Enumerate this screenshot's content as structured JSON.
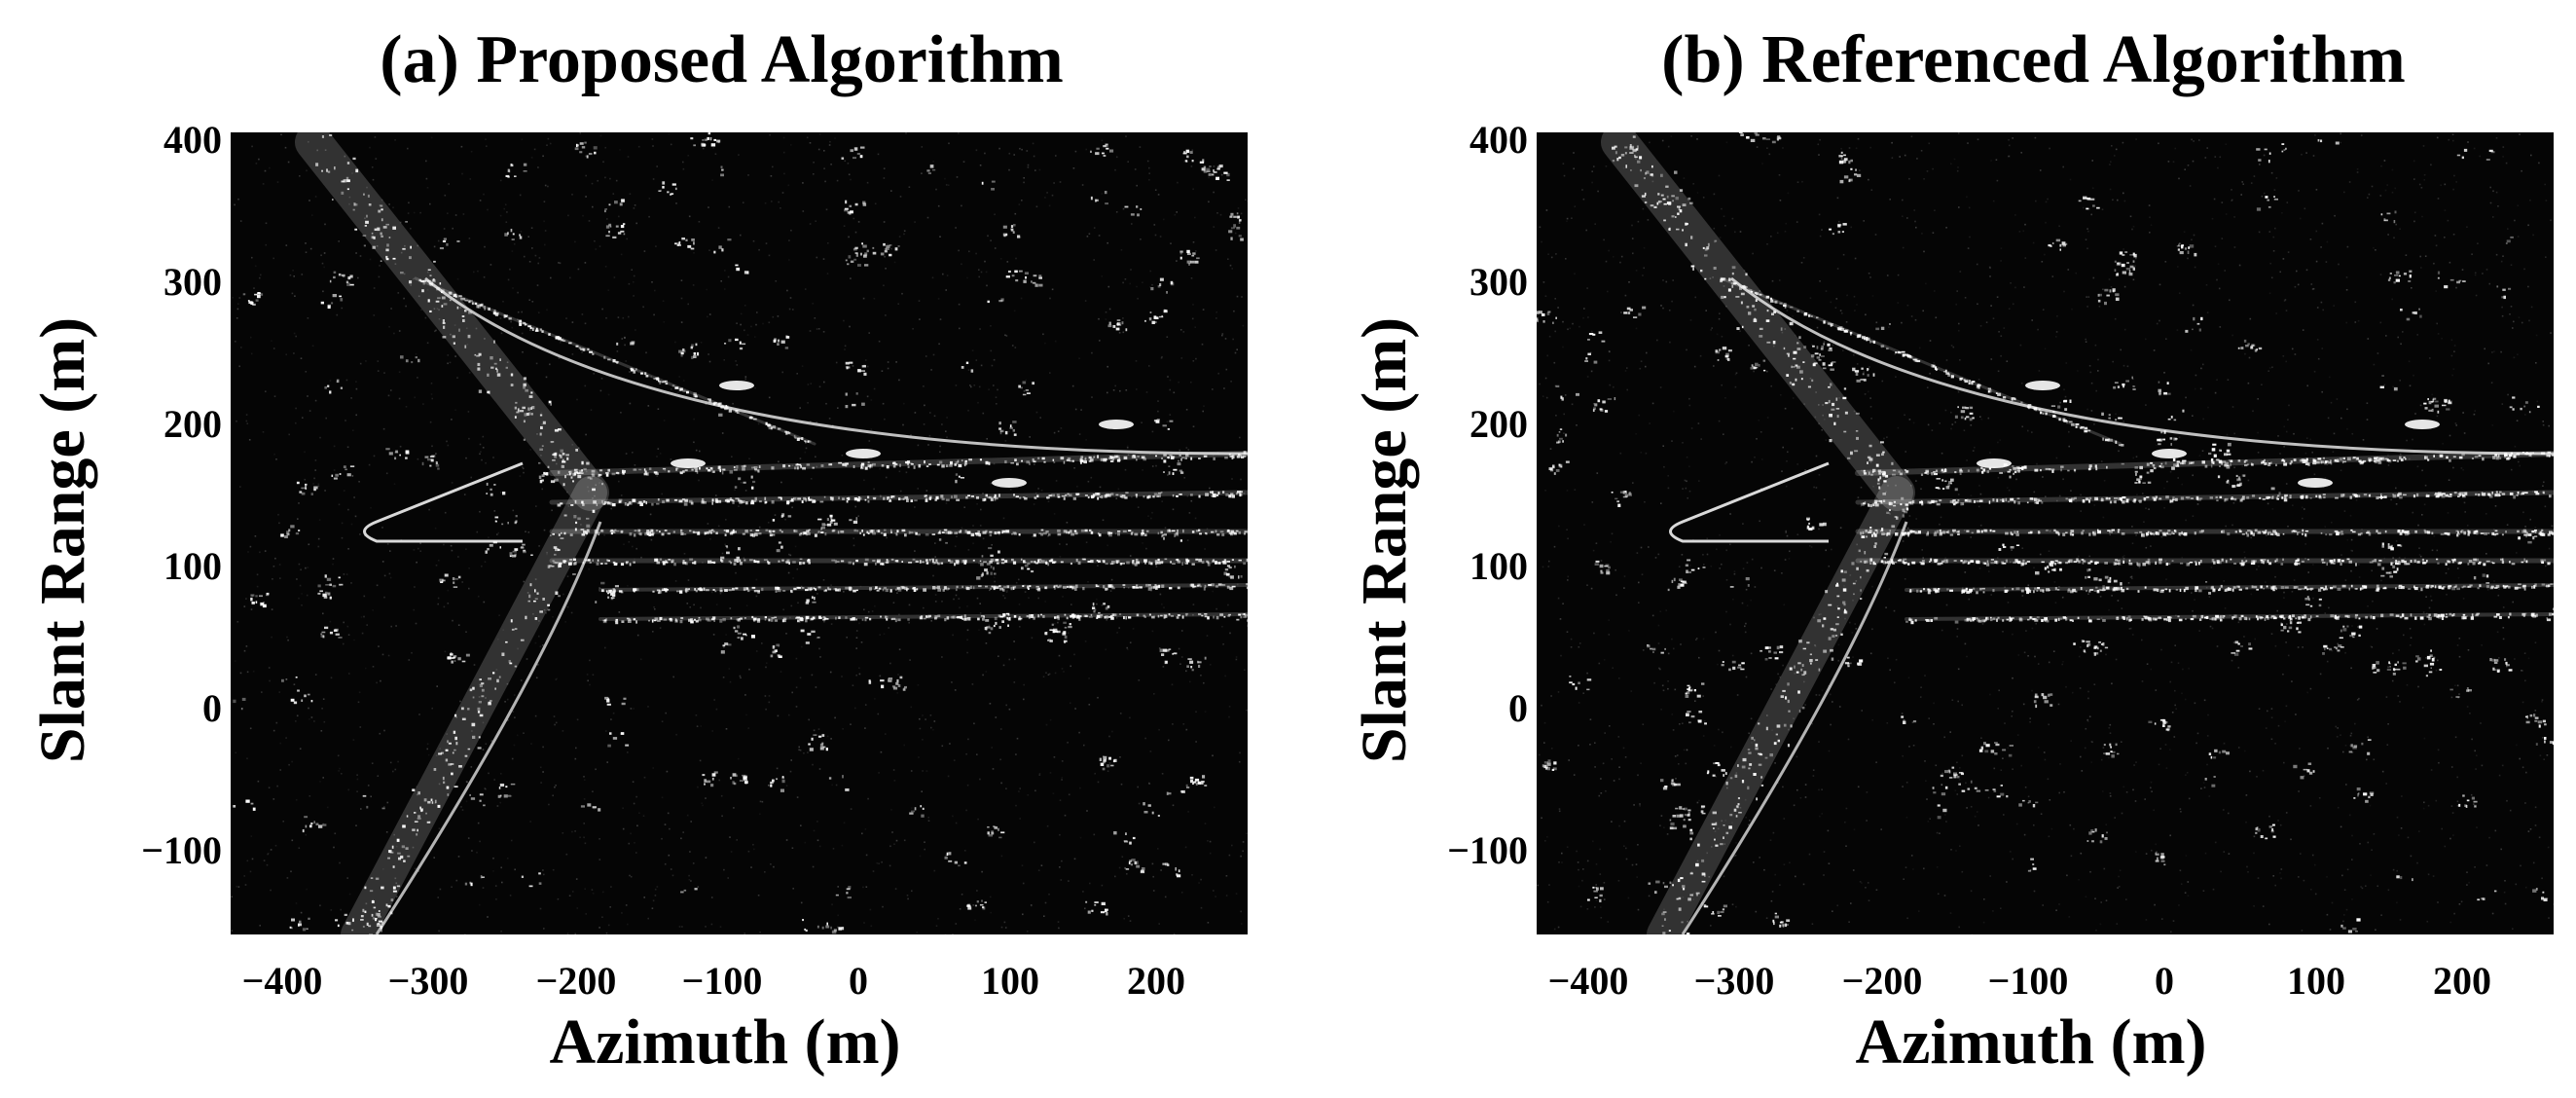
{
  "panels": [
    {
      "id": "a",
      "title": "(a) Proposed Algorithm",
      "xlabel": "Azimuth (m)",
      "ylabel": "Slant Range (m)",
      "xticks": [
        "−400",
        "−300",
        "−200",
        "−100",
        "0",
        "100",
        "200"
      ],
      "yticks": [
        "400",
        "300",
        "200",
        "100",
        "0",
        "−100"
      ]
    },
    {
      "id": "b",
      "title": "(b) Referenced Algorithm",
      "xlabel": "Azimuth (m)",
      "ylabel": "Slant Range (m)",
      "xticks": [
        "−400",
        "−300",
        "−200",
        "−100",
        "0",
        "100",
        "200"
      ],
      "yticks": [
        "400",
        "300",
        "200",
        "100",
        "0",
        "−100"
      ]
    }
  ],
  "image": {
    "colormap": "grayscale",
    "background_color": "#050505",
    "scatterer_color": "#ffffff"
  }
}
